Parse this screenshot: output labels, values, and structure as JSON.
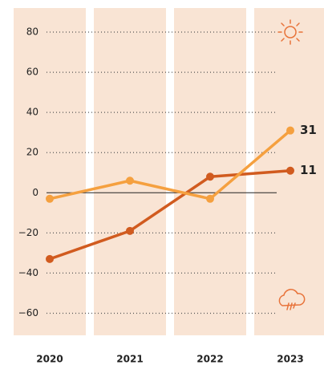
{
  "chart_data": {
    "type": "line",
    "x": [
      2020,
      2021,
      2022,
      2023
    ],
    "xlim": [
      2019.5,
      2023.5
    ],
    "ylim": [
      -71,
      92
    ],
    "yticks": [
      {
        "value": -60,
        "label": "−60"
      },
      {
        "value": -40,
        "label": "−40"
      },
      {
        "value": -20,
        "label": "−20"
      },
      0,
      20,
      40,
      60,
      80
    ],
    "grid": true,
    "series": [
      {
        "color": "#d15b1f",
        "values": [
          -33,
          -19,
          8,
          11
        ]
      },
      {
        "color": "#f5a03f",
        "values": [
          -3,
          6,
          -3,
          31
        ]
      }
    ]
  }
}
